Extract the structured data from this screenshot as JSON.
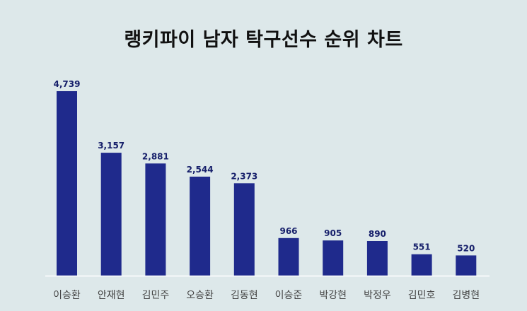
{
  "chart_data": {
    "type": "bar",
    "title": "랭키파이 남자 탁구선수 순위 차트",
    "xlabel": "",
    "ylabel": "",
    "categories": [
      "이승환",
      "안재현",
      "김민주",
      "오승환",
      "김동현",
      "이승준",
      "박강현",
      "박정우",
      "김민호",
      "김병현"
    ],
    "values": [
      4739,
      3157,
      2881,
      2544,
      2373,
      966,
      905,
      890,
      551,
      520
    ],
    "value_labels": [
      "4,739",
      "3,157",
      "2,881",
      "2,544",
      "2,373",
      "966",
      "905",
      "890",
      "551",
      "520"
    ],
    "ylim": [
      0,
      4739
    ],
    "grid": false,
    "legend": "none",
    "colors": {
      "bar": "#1f2a8c",
      "value_label": "#17206b",
      "category_label": "#444444",
      "background": "#dde8ea",
      "baseline": "#ffffff"
    }
  }
}
